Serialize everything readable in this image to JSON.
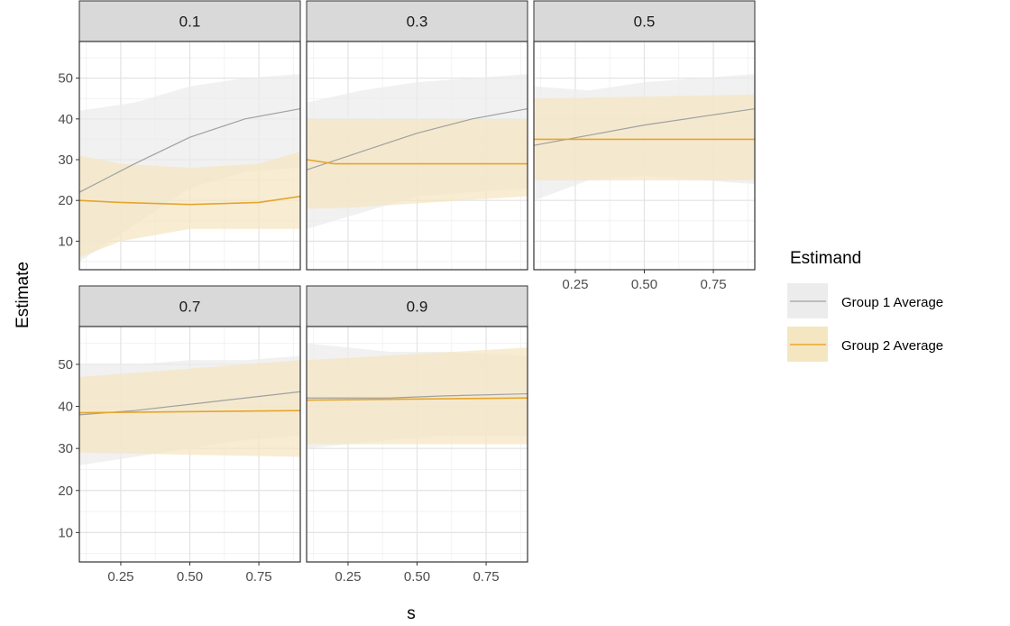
{
  "chart_data": {
    "type": "line",
    "facet_variable_values": [
      "0.1",
      "0.3",
      "0.5",
      "0.7",
      "0.9"
    ],
    "xlabel": "s",
    "ylabel": "Estimate",
    "xlim": [
      0.1,
      0.9
    ],
    "ylim": [
      3,
      59
    ],
    "x_ticks": [
      0.25,
      0.5,
      0.75
    ],
    "x_tick_labels": [
      "0.25",
      "0.50",
      "0.75"
    ],
    "y_ticks": [
      10,
      20,
      30,
      40,
      50
    ],
    "y_tick_labels": [
      "10",
      "20",
      "30",
      "40",
      "50"
    ],
    "grid": true,
    "legend": {
      "title": "Estimand",
      "placement": "right",
      "entries": [
        "Group 1 Average",
        "Group 2 Average"
      ]
    },
    "series_styles": [
      {
        "name": "Group 1 Average",
        "line_color": "#a0a0a0",
        "band_color": "#ececec"
      },
      {
        "name": "Group 2 Average",
        "line_color": "#e6a52b",
        "band_color": "#f5e6c2"
      }
    ],
    "panels": [
      {
        "label": "0.1",
        "series": [
          {
            "name": "Group 1 Average",
            "x": [
              0.1,
              0.3,
              0.5,
              0.7,
              0.9
            ],
            "y": [
              22,
              29,
              35.5,
              40,
              42.5
            ],
            "lower": [
              5,
              14,
              23,
              27,
              28
            ],
            "upper": [
              42,
              44,
              48,
              50,
              51
            ]
          },
          {
            "name": "Group 2 Average",
            "x": [
              0.1,
              0.25,
              0.5,
              0.75,
              0.9
            ],
            "y": [
              20,
              19.5,
              19,
              19.5,
              21
            ],
            "lower": [
              6,
              10,
              13,
              13,
              13
            ],
            "upper": [
              31,
              29,
              28,
              29,
              32
            ]
          }
        ]
      },
      {
        "label": "0.3",
        "series": [
          {
            "name": "Group 1 Average",
            "x": [
              0.1,
              0.3,
              0.5,
              0.7,
              0.9
            ],
            "y": [
              27.5,
              32,
              36.5,
              40,
              42.5
            ],
            "lower": [
              13,
              17,
              21,
              22,
              23
            ],
            "upper": [
              44,
              47,
              49,
              50,
              51
            ]
          },
          {
            "name": "Group 2 Average",
            "x": [
              0.1,
              0.2,
              0.9
            ],
            "y": [
              30,
              29,
              29
            ],
            "lower": [
              18,
              18,
              21
            ],
            "upper": [
              40,
              40,
              40
            ]
          }
        ]
      },
      {
        "label": "0.5",
        "series": [
          {
            "name": "Group 1 Average",
            "x": [
              0.1,
              0.3,
              0.5,
              0.7,
              0.9
            ],
            "y": [
              33.5,
              36,
              38.5,
              40.5,
              42.5
            ],
            "lower": [
              20,
              25,
              26,
              25,
              24
            ],
            "upper": [
              48,
              47,
              49,
              50,
              51
            ]
          },
          {
            "name": "Group 2 Average",
            "x": [
              0.1,
              0.9
            ],
            "y": [
              35,
              35
            ],
            "lower": [
              25,
              25
            ],
            "upper": [
              45,
              46
            ]
          }
        ]
      },
      {
        "label": "0.7",
        "series": [
          {
            "name": "Group 1 Average",
            "x": [
              0.1,
              0.3,
              0.5,
              0.7,
              0.9
            ],
            "y": [
              38,
              39,
              40.5,
              42,
              43.5
            ],
            "lower": [
              26,
              28,
              30,
              32,
              33
            ],
            "upper": [
              50,
              50,
              51,
              51,
              52
            ]
          },
          {
            "name": "Group 2 Average",
            "x": [
              0.1,
              0.9
            ],
            "y": [
              38.5,
              39
            ],
            "lower": [
              29,
              28
            ],
            "upper": [
              47,
              51
            ]
          }
        ]
      },
      {
        "label": "0.9",
        "series": [
          {
            "name": "Group 1 Average",
            "x": [
              0.1,
              0.4,
              0.6,
              0.9
            ],
            "y": [
              42,
              42,
              42.5,
              43
            ],
            "lower": [
              30,
              32,
              33,
              33
            ],
            "upper": [
              55,
              53,
              53,
              52
            ]
          },
          {
            "name": "Group 2 Average",
            "x": [
              0.1,
              0.9
            ],
            "y": [
              41.5,
              42
            ],
            "lower": [
              31,
              31
            ],
            "upper": [
              51,
              54
            ]
          }
        ]
      }
    ]
  }
}
